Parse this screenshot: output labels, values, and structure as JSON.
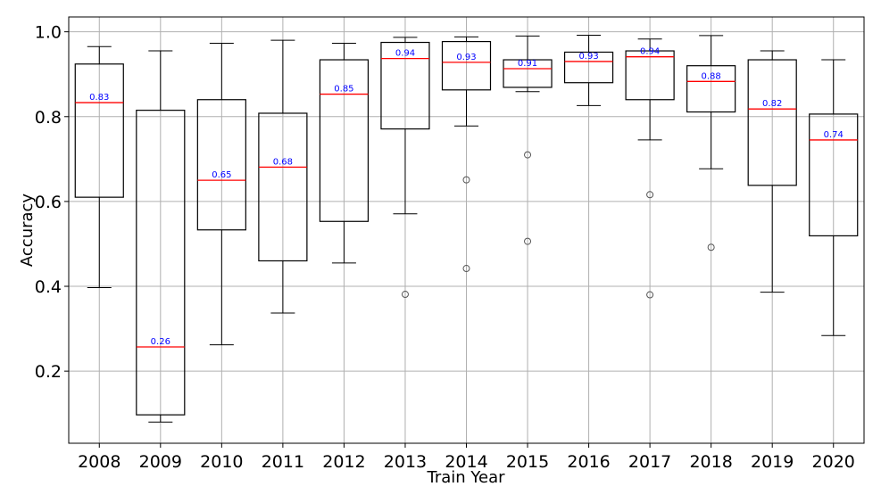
{
  "chart_data": {
    "type": "box",
    "title": "",
    "xlabel": "Train Year",
    "ylabel": "Accuracy",
    "ylim": [
      0.03,
      1.035
    ],
    "yticks": [
      0.2,
      0.4,
      0.6,
      0.8,
      1.0
    ],
    "ytick_labels": [
      "0.2",
      "0.4",
      "0.6",
      "0.8",
      "1.0"
    ],
    "grid": true,
    "colors": {
      "box": "#000000",
      "median": "#ff0000",
      "median_label": "#0000ff",
      "grid": "#b0b0b0"
    },
    "categories": [
      "2008",
      "2009",
      "2010",
      "2011",
      "2012",
      "2013",
      "2014",
      "2015",
      "2016",
      "2017",
      "2018",
      "2019",
      "2020"
    ],
    "boxes": [
      {
        "whislo": 0.397,
        "q1": 0.61,
        "med": 0.833,
        "q3": 0.924,
        "whishi": 0.965,
        "fliers": [],
        "label": "0.83"
      },
      {
        "whislo": 0.08,
        "q1": 0.097,
        "med": 0.257,
        "q3": 0.815,
        "whishi": 0.955,
        "fliers": [],
        "label": "0.26"
      },
      {
        "whislo": 0.262,
        "q1": 0.533,
        "med": 0.65,
        "q3": 0.84,
        "whishi": 0.973,
        "fliers": [],
        "label": "0.65"
      },
      {
        "whislo": 0.337,
        "q1": 0.46,
        "med": 0.681,
        "q3": 0.808,
        "whishi": 0.98,
        "fliers": [],
        "label": "0.68"
      },
      {
        "whislo": 0.455,
        "q1": 0.553,
        "med": 0.853,
        "q3": 0.934,
        "whishi": 0.973,
        "fliers": [],
        "label": "0.85"
      },
      {
        "whislo": 0.571,
        "q1": 0.771,
        "med": 0.937,
        "q3": 0.975,
        "whishi": 0.987,
        "fliers": [
          0.381
        ],
        "label": "0.94"
      },
      {
        "whislo": 0.778,
        "q1": 0.863,
        "med": 0.928,
        "q3": 0.977,
        "whishi": 0.988,
        "fliers": [
          0.651,
          0.442
        ],
        "label": "0.93"
      },
      {
        "whislo": 0.859,
        "q1": 0.869,
        "med": 0.913,
        "q3": 0.934,
        "whishi": 0.99,
        "fliers": [
          0.71,
          0.506
        ],
        "label": "0.91"
      },
      {
        "whislo": 0.826,
        "q1": 0.88,
        "med": 0.93,
        "q3": 0.952,
        "whishi": 0.992,
        "fliers": [],
        "label": "0.93"
      },
      {
        "whislo": 0.745,
        "q1": 0.84,
        "med": 0.941,
        "q3": 0.955,
        "whishi": 0.983,
        "fliers": [
          0.616,
          0.38
        ],
        "label": "0.94"
      },
      {
        "whislo": 0.677,
        "q1": 0.811,
        "med": 0.883,
        "q3": 0.92,
        "whishi": 0.991,
        "fliers": [
          0.492
        ],
        "label": "0.88"
      },
      {
        "whislo": 0.386,
        "q1": 0.638,
        "med": 0.818,
        "q3": 0.934,
        "whishi": 0.955,
        "fliers": [],
        "label": "0.82"
      },
      {
        "whislo": 0.284,
        "q1": 0.519,
        "med": 0.745,
        "q3": 0.806,
        "whishi": 0.934,
        "fliers": [],
        "label": "0.74"
      }
    ]
  }
}
